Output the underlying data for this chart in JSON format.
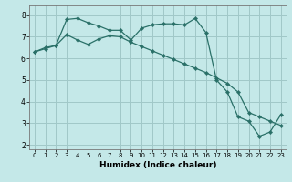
{
  "xlabel": "Humidex (Indice chaleur)",
  "bg_color": "#c4e8e8",
  "grid_color": "#a0c8c8",
  "line_color": "#2a7068",
  "xlim": [
    -0.5,
    23.5
  ],
  "ylim": [
    1.8,
    8.45
  ],
  "yticks": [
    2,
    3,
    4,
    5,
    6,
    7,
    8
  ],
  "xticks": [
    0,
    1,
    2,
    3,
    4,
    5,
    6,
    7,
    8,
    9,
    10,
    11,
    12,
    13,
    14,
    15,
    16,
    17,
    18,
    19,
    20,
    21,
    22,
    23
  ],
  "line1_x": [
    0,
    1,
    2,
    3,
    4,
    5,
    6,
    7,
    8,
    9,
    10,
    11,
    12,
    13,
    14,
    15,
    16,
    17,
    18,
    19,
    20,
    21,
    22,
    23
  ],
  "line1_y": [
    6.3,
    6.5,
    6.6,
    7.8,
    7.85,
    7.65,
    7.5,
    7.3,
    7.3,
    6.85,
    7.4,
    7.55,
    7.6,
    7.6,
    7.55,
    7.85,
    7.2,
    5.0,
    4.45,
    3.3,
    3.1,
    2.4,
    2.6,
    3.4
  ],
  "line2_x": [
    0,
    1,
    2,
    3,
    4,
    5,
    6,
    7,
    8,
    9,
    10,
    11,
    12,
    13,
    14,
    15,
    16,
    17,
    18,
    19,
    20,
    21,
    22,
    23
  ],
  "line2_y": [
    6.3,
    6.45,
    6.6,
    7.1,
    6.85,
    6.65,
    6.9,
    7.05,
    7.0,
    6.75,
    6.55,
    6.35,
    6.15,
    5.95,
    5.75,
    5.55,
    5.35,
    5.1,
    4.85,
    4.45,
    3.5,
    3.3,
    3.1,
    2.9
  ]
}
